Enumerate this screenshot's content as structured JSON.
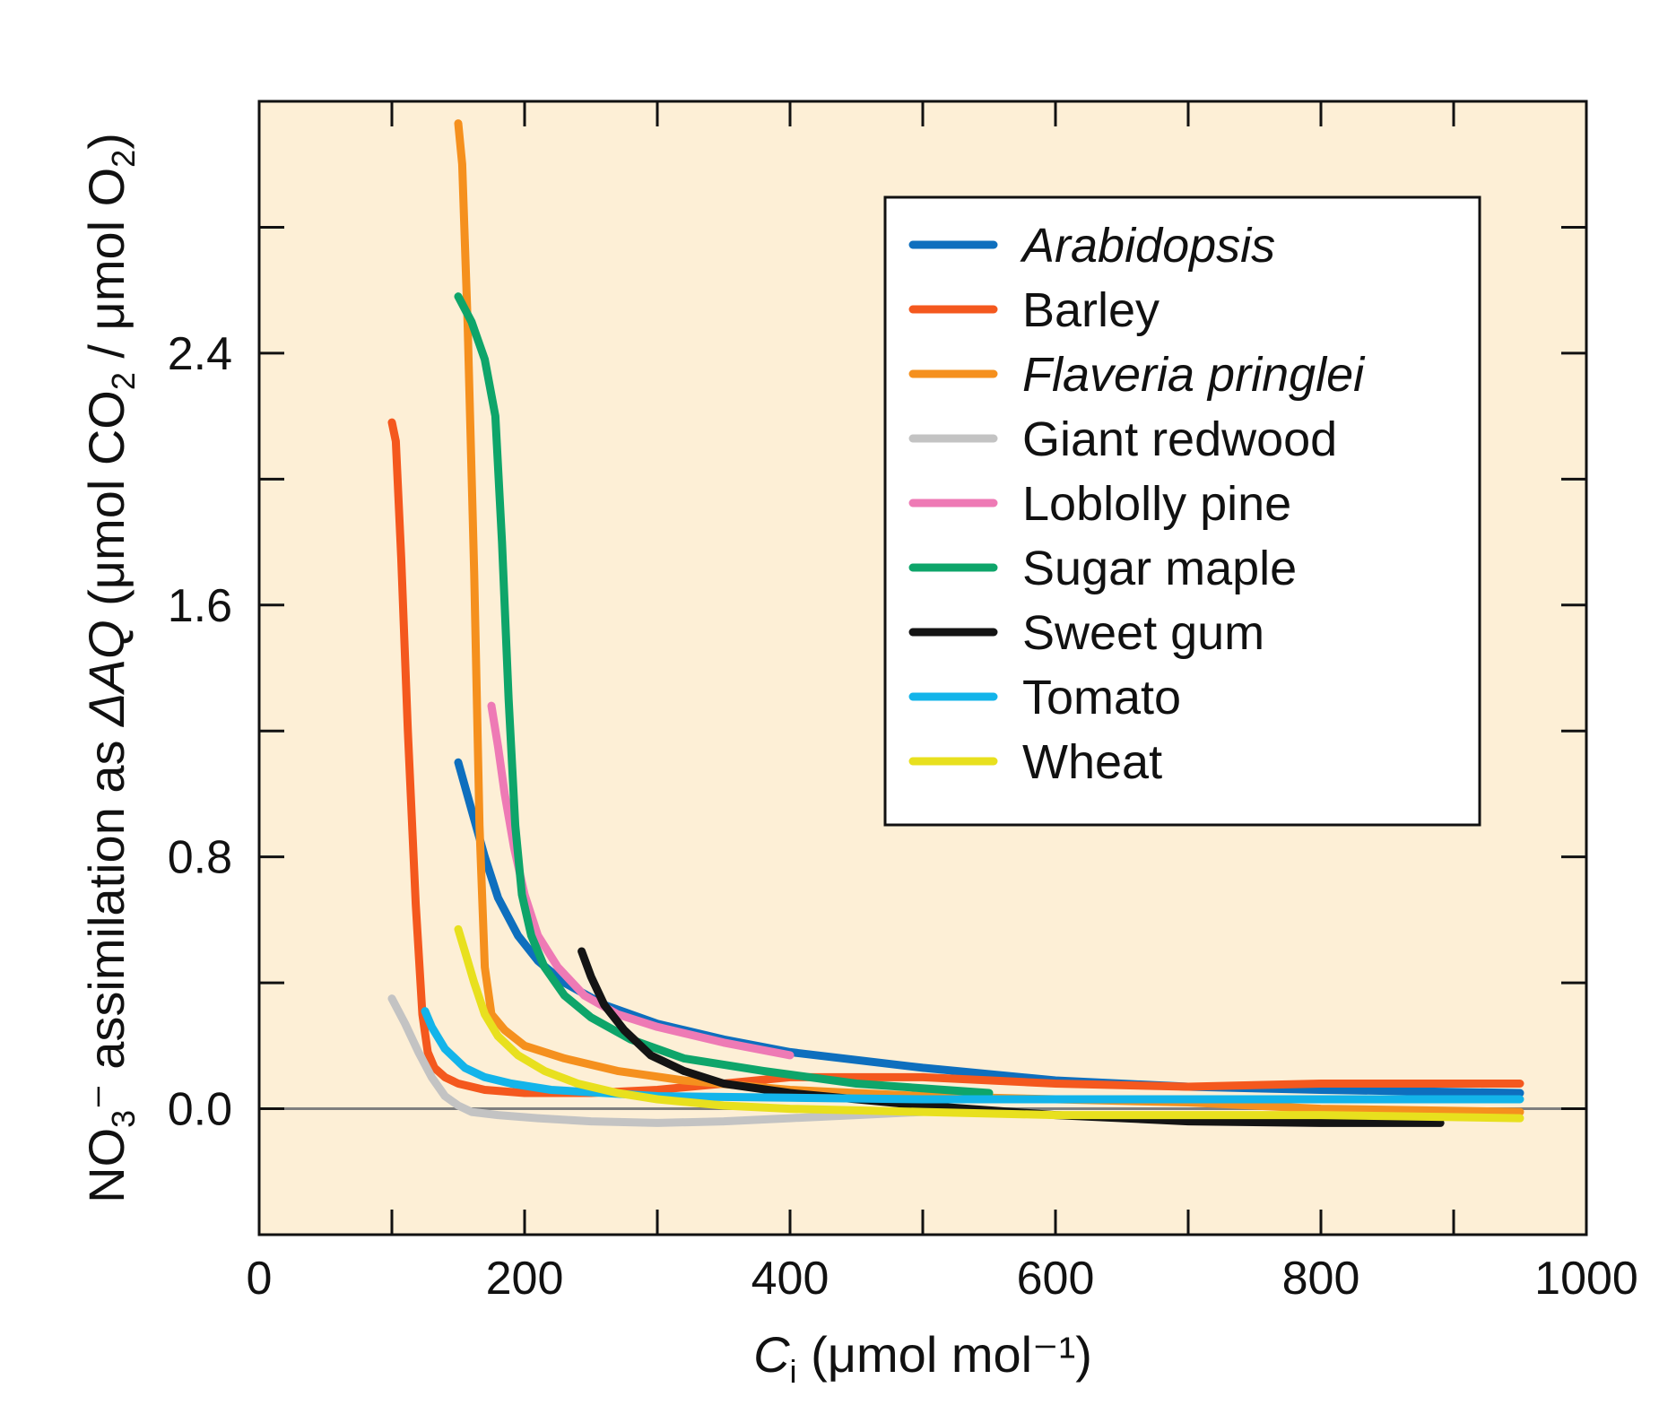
{
  "chart_data": {
    "type": "line",
    "title": "",
    "xlabel": {
      "main": "C",
      "sub": "i",
      "unit": " (μmol mol⁻¹)"
    },
    "ylabel": {
      "parts": [
        "NO",
        "3",
        "⁻ assimilation as ",
        "ΔAQ",
        " (μmol CO",
        "2",
        " / μmol O",
        "2",
        ")"
      ]
    },
    "xlim": [
      0,
      1000
    ],
    "ylim": [
      -0.4,
      3.2
    ],
    "x_ticks": [
      0,
      200,
      400,
      600,
      800,
      1000
    ],
    "x_tick_labels": [
      "0",
      "200",
      "400",
      "600",
      "800",
      "1000"
    ],
    "y_ticks": [
      0,
      0.8,
      1.6,
      2.4
    ],
    "y_tick_labels": [
      "0.0",
      "0.8",
      "1.6",
      "2.4"
    ],
    "x_minor_step": 100,
    "y_minor_step": 0.4,
    "zero_line": 0,
    "legend_position": "top-right",
    "series": [
      {
        "name": "Arabidopsis",
        "italic": true,
        "color": "#0e6fbe",
        "x": [
          150,
          160,
          170,
          180,
          195,
          210,
          230,
          260,
          300,
          350,
          400,
          500,
          600,
          700,
          800,
          950
        ],
        "y": [
          1.1,
          0.95,
          0.8,
          0.67,
          0.55,
          0.47,
          0.4,
          0.33,
          0.27,
          0.22,
          0.18,
          0.13,
          0.09,
          0.07,
          0.06,
          0.05
        ]
      },
      {
        "name": "Barley",
        "italic": false,
        "color": "#f4581e",
        "x": [
          100,
          103,
          107,
          112,
          118,
          123,
          127,
          132,
          140,
          150,
          170,
          200,
          250,
          300,
          350,
          400,
          500,
          600,
          700,
          800,
          950
        ],
        "y": [
          2.18,
          2.12,
          1.75,
          1.2,
          0.65,
          0.3,
          0.18,
          0.13,
          0.1,
          0.08,
          0.06,
          0.05,
          0.05,
          0.06,
          0.08,
          0.1,
          0.1,
          0.08,
          0.07,
          0.08,
          0.08
        ]
      },
      {
        "name": "Flaveria pringlei",
        "italic": true,
        "color": "#f5901e",
        "x": [
          150,
          153,
          157,
          162,
          166,
          170,
          175,
          185,
          200,
          230,
          270,
          320,
          400,
          500,
          600,
          700,
          800,
          950
        ],
        "y": [
          3.13,
          3.0,
          2.5,
          1.7,
          0.9,
          0.45,
          0.3,
          0.25,
          0.2,
          0.16,
          0.12,
          0.09,
          0.06,
          0.04,
          0.03,
          0.02,
          0.0,
          -0.01
        ]
      },
      {
        "name": "Giant redwood",
        "italic": false,
        "color": "#c3c3c3",
        "x": [
          100,
          110,
          120,
          130,
          140,
          150,
          160,
          180,
          210,
          250,
          300,
          350,
          400,
          450,
          500
        ],
        "y": [
          0.35,
          0.27,
          0.18,
          0.1,
          0.04,
          0.01,
          -0.01,
          -0.02,
          -0.03,
          -0.04,
          -0.045,
          -0.04,
          -0.03,
          -0.02,
          -0.01
        ]
      },
      {
        "name": "Loblolly pine",
        "italic": false,
        "color": "#ee7ab5",
        "x": [
          175,
          180,
          185,
          192,
          200,
          210,
          225,
          245,
          270,
          300,
          350,
          400
        ],
        "y": [
          1.28,
          1.15,
          1.0,
          0.83,
          0.68,
          0.55,
          0.45,
          0.36,
          0.3,
          0.26,
          0.21,
          0.17
        ]
      },
      {
        "name": "Sugar maple",
        "italic": false,
        "color": "#0ea56a",
        "x": [
          150,
          160,
          170,
          178,
          183,
          188,
          193,
          198,
          205,
          215,
          230,
          250,
          280,
          320,
          380,
          450,
          550
        ],
        "y": [
          2.58,
          2.5,
          2.38,
          2.2,
          1.8,
          1.3,
          0.9,
          0.68,
          0.55,
          0.45,
          0.36,
          0.29,
          0.22,
          0.16,
          0.12,
          0.08,
          0.05
        ]
      },
      {
        "name": "Sweet gum",
        "italic": false,
        "color": "#141414",
        "x": [
          243,
          250,
          260,
          275,
          295,
          320,
          350,
          400,
          500,
          600,
          700,
          800,
          890
        ],
        "y": [
          0.5,
          0.42,
          0.33,
          0.25,
          0.17,
          0.12,
          0.08,
          0.05,
          0.01,
          -0.02,
          -0.04,
          -0.045,
          -0.045
        ]
      },
      {
        "name": "Tomato",
        "italic": false,
        "color": "#13b4ea",
        "x": [
          125,
          130,
          140,
          155,
          170,
          190,
          220,
          260,
          300,
          400,
          500,
          600,
          700,
          800,
          950
        ],
        "y": [
          0.31,
          0.26,
          0.19,
          0.13,
          0.1,
          0.08,
          0.06,
          0.05,
          0.04,
          0.035,
          0.03,
          0.03,
          0.03,
          0.03,
          0.03
        ]
      },
      {
        "name": "Wheat",
        "italic": false,
        "color": "#e8e01e",
        "x": [
          150,
          155,
          162,
          170,
          180,
          195,
          215,
          240,
          270,
          300,
          350,
          400,
          500,
          600,
          700,
          800,
          950
        ],
        "y": [
          0.57,
          0.5,
          0.4,
          0.3,
          0.23,
          0.17,
          0.12,
          0.08,
          0.05,
          0.03,
          0.01,
          0.0,
          -0.01,
          -0.02,
          -0.02,
          -0.02,
          -0.03
        ]
      }
    ]
  },
  "colors": {
    "plot_background": "#fdefd6",
    "zero_line": "#7f7f7f"
  }
}
